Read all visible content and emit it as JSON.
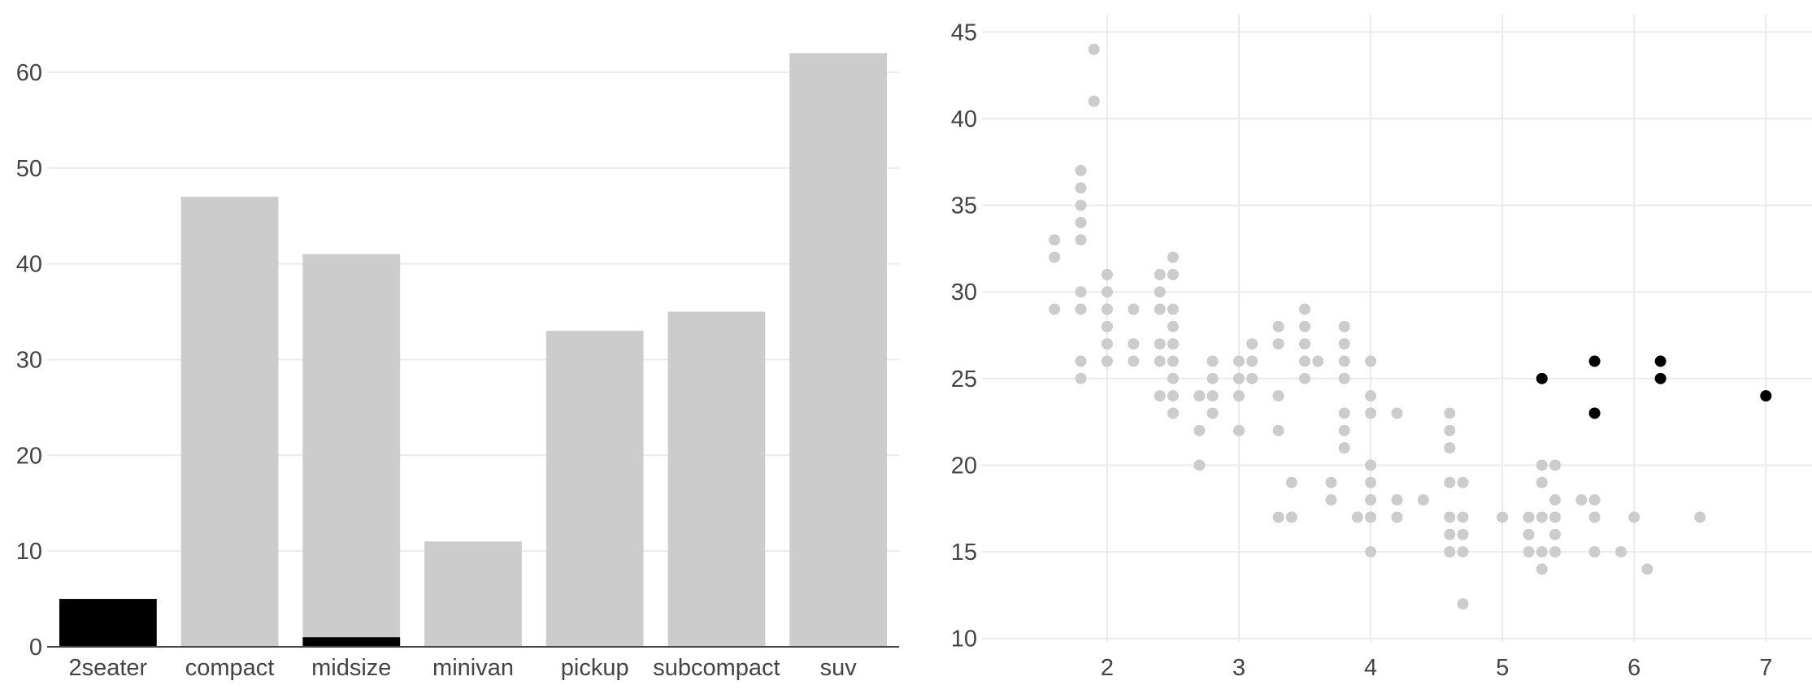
{
  "chart_data": [
    {
      "type": "bar",
      "barmode": "overlay",
      "categories": [
        "2seater",
        "compact",
        "midsize",
        "minivan",
        "pickup",
        "subcompact",
        "suv"
      ],
      "series": [
        {
          "values": [
            5,
            47,
            41,
            11,
            33,
            35,
            62
          ],
          "color": "#cccccc"
        },
        {
          "values": [
            5,
            0,
            1,
            0,
            0,
            0,
            0
          ],
          "color": "#000000"
        }
      ],
      "ylim": [
        0,
        65
      ],
      "yticks": [
        0,
        10,
        20,
        30,
        40,
        50,
        60
      ],
      "grid": true,
      "legend": "none"
    },
    {
      "type": "scatter",
      "xlim": [
        1.05,
        7.35
      ],
      "ylim": [
        9.8,
        46
      ],
      "xticks": [
        2,
        3,
        4,
        5,
        6,
        7
      ],
      "yticks": [
        10,
        15,
        20,
        25,
        30,
        35,
        40,
        45
      ],
      "grid": true,
      "legend": "none",
      "series": [
        {
          "color": "#cccccc",
          "points": [
            [
              1.6,
              33
            ],
            [
              1.6,
              32
            ],
            [
              1.6,
              29
            ],
            [
              1.8,
              37
            ],
            [
              1.8,
              36
            ],
            [
              1.8,
              35
            ],
            [
              1.8,
              34
            ],
            [
              1.8,
              33
            ],
            [
              1.8,
              30
            ],
            [
              1.8,
              29
            ],
            [
              1.8,
              26
            ],
            [
              1.8,
              25
            ],
            [
              1.9,
              44
            ],
            [
              1.9,
              41
            ],
            [
              2.0,
              31
            ],
            [
              2.0,
              30
            ],
            [
              2.0,
              29
            ],
            [
              2.0,
              28
            ],
            [
              2.0,
              27
            ],
            [
              2.0,
              26
            ],
            [
              2.2,
              29
            ],
            [
              2.2,
              27
            ],
            [
              2.2,
              26
            ],
            [
              2.4,
              31
            ],
            [
              2.4,
              30
            ],
            [
              2.4,
              29
            ],
            [
              2.4,
              27
            ],
            [
              2.4,
              26
            ],
            [
              2.4,
              24
            ],
            [
              2.5,
              32
            ],
            [
              2.5,
              31
            ],
            [
              2.5,
              29
            ],
            [
              2.5,
              28
            ],
            [
              2.5,
              27
            ],
            [
              2.5,
              26
            ],
            [
              2.5,
              25
            ],
            [
              2.5,
              24
            ],
            [
              2.5,
              23
            ],
            [
              2.7,
              24
            ],
            [
              2.7,
              22
            ],
            [
              2.7,
              20
            ],
            [
              2.8,
              26
            ],
            [
              2.8,
              25
            ],
            [
              2.8,
              24
            ],
            [
              2.8,
              23
            ],
            [
              3.0,
              26
            ],
            [
              3.0,
              25
            ],
            [
              3.0,
              24
            ],
            [
              3.0,
              22
            ],
            [
              3.1,
              27
            ],
            [
              3.1,
              26
            ],
            [
              3.1,
              25
            ],
            [
              3.3,
              28
            ],
            [
              3.3,
              27
            ],
            [
              3.3,
              24
            ],
            [
              3.3,
              22
            ],
            [
              3.3,
              17
            ],
            [
              3.4,
              19
            ],
            [
              3.4,
              17
            ],
            [
              3.5,
              29
            ],
            [
              3.5,
              28
            ],
            [
              3.5,
              27
            ],
            [
              3.5,
              26
            ],
            [
              3.5,
              25
            ],
            [
              3.6,
              26
            ],
            [
              3.7,
              19
            ],
            [
              3.7,
              18
            ],
            [
              3.8,
              28
            ],
            [
              3.8,
              27
            ],
            [
              3.8,
              26
            ],
            [
              3.8,
              25
            ],
            [
              3.8,
              23
            ],
            [
              3.8,
              22
            ],
            [
              3.8,
              21
            ],
            [
              3.9,
              17
            ],
            [
              4.0,
              26
            ],
            [
              4.0,
              24
            ],
            [
              4.0,
              23
            ],
            [
              4.0,
              20
            ],
            [
              4.0,
              19
            ],
            [
              4.0,
              18
            ],
            [
              4.0,
              17
            ],
            [
              4.0,
              15
            ],
            [
              4.2,
              23
            ],
            [
              4.2,
              18
            ],
            [
              4.2,
              17
            ],
            [
              4.4,
              18
            ],
            [
              4.6,
              23
            ],
            [
              4.6,
              22
            ],
            [
              4.6,
              21
            ],
            [
              4.6,
              19
            ],
            [
              4.6,
              17
            ],
            [
              4.6,
              16
            ],
            [
              4.6,
              15
            ],
            [
              4.7,
              19
            ],
            [
              4.7,
              17
            ],
            [
              4.7,
              16
            ],
            [
              4.7,
              15
            ],
            [
              4.7,
              12
            ],
            [
              5.0,
              17
            ],
            [
              5.2,
              17
            ],
            [
              5.2,
              16
            ],
            [
              5.2,
              15
            ],
            [
              5.3,
              20
            ],
            [
              5.3,
              19
            ],
            [
              5.3,
              17
            ],
            [
              5.3,
              15
            ],
            [
              5.3,
              14
            ],
            [
              5.4,
              20
            ],
            [
              5.4,
              18
            ],
            [
              5.4,
              17
            ],
            [
              5.4,
              16
            ],
            [
              5.4,
              15
            ],
            [
              5.6,
              18
            ],
            [
              5.7,
              18
            ],
            [
              5.7,
              17
            ],
            [
              5.7,
              15
            ],
            [
              5.9,
              15
            ],
            [
              6.0,
              17
            ],
            [
              6.1,
              14
            ],
            [
              6.5,
              17
            ]
          ]
        },
        {
          "color": "#000000",
          "points": [
            [
              5.3,
              25
            ],
            [
              5.7,
              26
            ],
            [
              5.7,
              23
            ],
            [
              6.2,
              26
            ],
            [
              6.2,
              25
            ],
            [
              7.0,
              24
            ]
          ]
        }
      ]
    }
  ]
}
